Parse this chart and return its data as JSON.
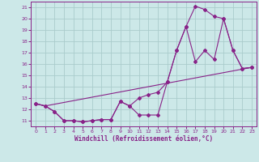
{
  "xlabel": "Windchill (Refroidissement éolien,°C)",
  "xlim": [
    -0.5,
    23.5
  ],
  "ylim": [
    10.5,
    21.5
  ],
  "xticks": [
    0,
    1,
    2,
    3,
    4,
    5,
    6,
    7,
    8,
    9,
    10,
    11,
    12,
    13,
    14,
    15,
    16,
    17,
    18,
    19,
    20,
    21,
    22,
    23
  ],
  "yticks": [
    11,
    12,
    13,
    14,
    15,
    16,
    17,
    18,
    19,
    20,
    21
  ],
  "bg_color": "#cce8e8",
  "grid_color": "#aacccc",
  "line_color": "#882288",
  "line1_x": [
    0,
    1,
    2,
    3,
    4,
    5,
    6,
    7,
    8,
    9,
    10,
    11,
    12,
    13,
    14,
    15,
    16,
    17,
    18,
    19,
    20,
    21,
    22,
    23
  ],
  "line1_y": [
    12.5,
    12.3,
    11.8,
    11.0,
    11.0,
    10.9,
    11.0,
    11.1,
    11.1,
    12.7,
    12.3,
    11.5,
    11.5,
    11.5,
    14.4,
    17.2,
    19.3,
    16.2,
    17.2,
    16.4,
    20.0,
    17.2,
    15.6,
    15.7
  ],
  "line2_x": [
    0,
    1,
    2,
    3,
    4,
    5,
    6,
    7,
    8,
    9,
    10,
    11,
    12,
    13,
    14,
    15,
    16,
    17,
    18,
    19,
    20,
    21,
    22,
    23
  ],
  "line2_y": [
    12.5,
    12.3,
    11.8,
    11.0,
    11.0,
    10.9,
    11.0,
    11.1,
    11.1,
    12.7,
    12.3,
    13.0,
    13.3,
    13.5,
    14.4,
    17.2,
    19.3,
    21.1,
    20.8,
    20.2,
    20.0,
    17.2,
    15.6,
    15.7
  ],
  "line3_x": [
    0,
    1,
    23
  ],
  "line3_y": [
    12.5,
    12.3,
    15.7
  ]
}
